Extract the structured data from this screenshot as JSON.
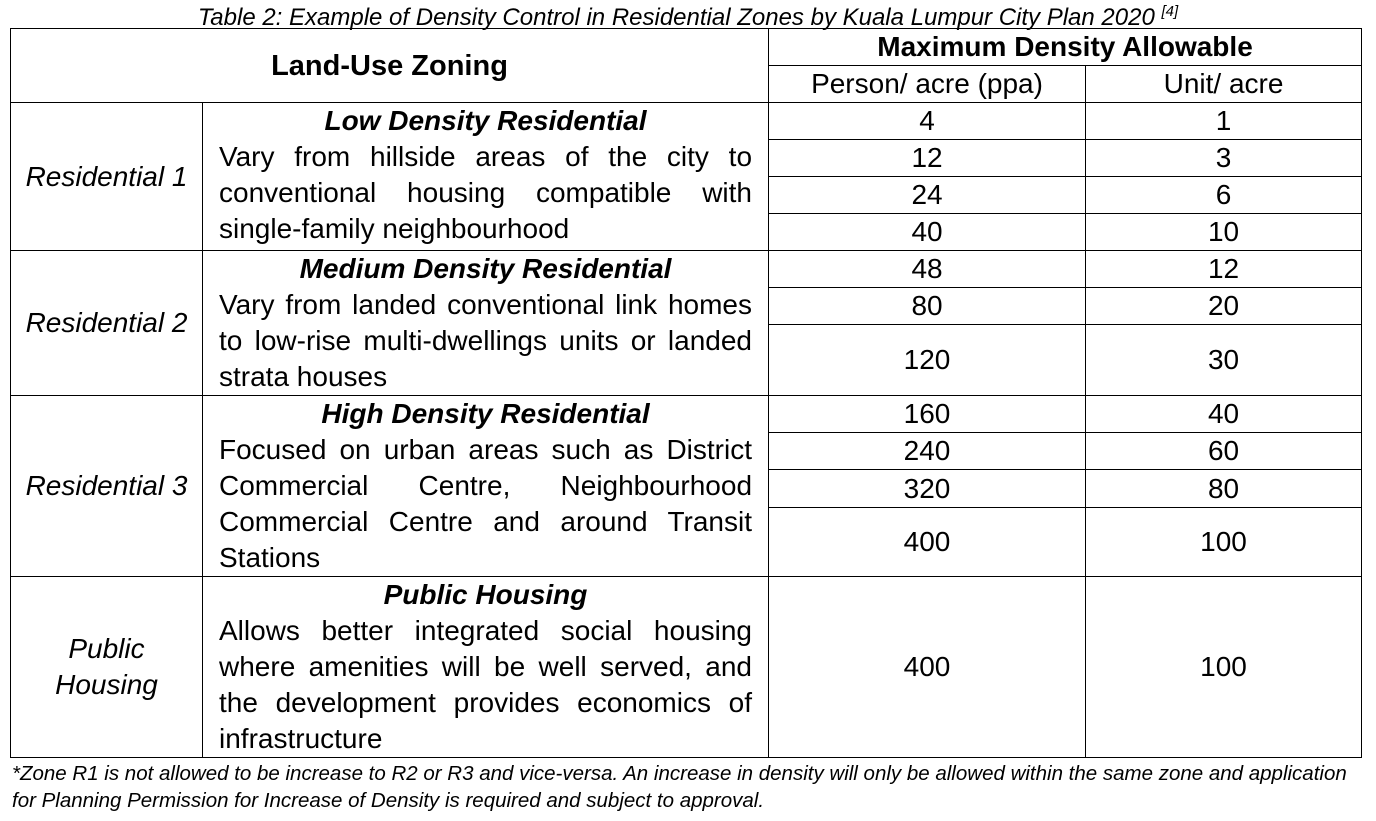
{
  "caption": {
    "text": "Table 2: Example of Density Control in Residential Zones by Kuala Lumpur City Plan 2020",
    "ref": "[4]"
  },
  "table": {
    "header": {
      "zoning": "Land-Use Zoning",
      "max_density": "Maximum Density Allowable",
      "ppa": "Person/ acre (ppa)",
      "unit": "Unit/ acre"
    },
    "groups": [
      {
        "zone": "Residential 1",
        "heading": "Low Density Residential",
        "description": "Vary from hillside areas of the city to conventional housing compatible with single-family neighbourhood",
        "rows": [
          [
            4,
            1
          ],
          [
            12,
            3
          ],
          [
            24,
            6
          ],
          [
            40,
            10
          ]
        ]
      },
      {
        "zone": "Residential 2",
        "heading": "Medium Density Residential",
        "description": "Vary from landed conventional link homes to low-rise multi-dwellings units or landed strata houses",
        "rows": [
          [
            48,
            12
          ],
          [
            80,
            20
          ],
          [
            120,
            30
          ]
        ]
      },
      {
        "zone": "Residential 3",
        "heading": "High Density Residential",
        "description": "Focused on urban areas such as District Commercial Centre, Neighbourhood Commercial Centre and around Transit Stations",
        "rows": [
          [
            160,
            40
          ],
          [
            240,
            60
          ],
          [
            320,
            80
          ],
          [
            400,
            100
          ]
        ]
      },
      {
        "zone": "Public Housing",
        "heading": "Public Housing",
        "description": "Allows better integrated social housing where amenities will be well served, and the development provides economics of infrastructure",
        "rows": [
          [
            400,
            100
          ]
        ]
      }
    ]
  },
  "footnote": "*Zone R1 is not allowed to be increase to R2 or R3 and vice-versa. An increase in density will only be allowed within the same zone and application for Planning Permission for Increase of Density is required and subject to approval."
}
